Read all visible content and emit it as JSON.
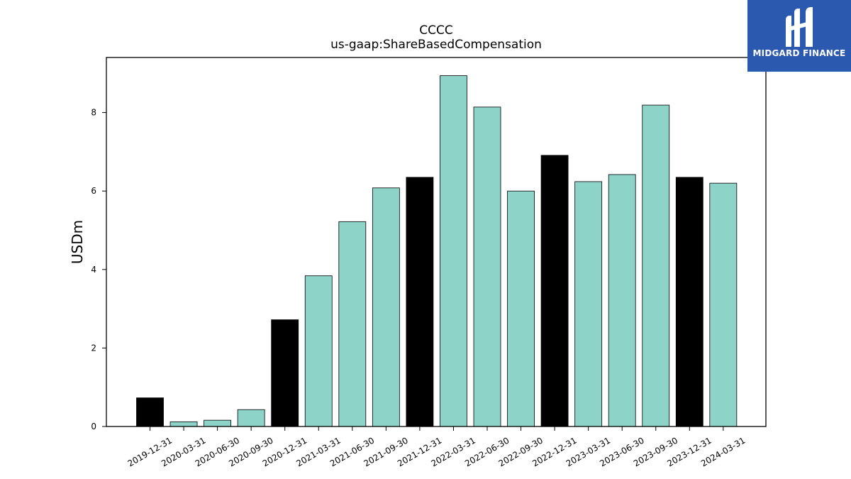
{
  "chart_data": {
    "type": "bar",
    "title": "CCCC",
    "subtitle": "us-gaap:ShareBasedCompensation",
    "xlabel": "",
    "ylabel": "USDm",
    "ylim": [
      0,
      9.4
    ],
    "yticks": [
      0,
      2,
      4,
      6,
      8
    ],
    "grid": false,
    "categories": [
      "2019-12-31",
      "2020-03-31",
      "2020-06-30",
      "2020-09-30",
      "2020-12-31",
      "2021-03-31",
      "2021-06-30",
      "2021-09-30",
      "2021-12-31",
      "2022-03-31",
      "2022-06-30",
      "2022-09-30",
      "2022-12-31",
      "2023-03-31",
      "2023-06-30",
      "2023-09-30",
      "2023-12-31",
      "2024-03-31"
    ],
    "values": [
      0.73,
      0.12,
      0.16,
      0.43,
      2.72,
      3.84,
      5.22,
      6.08,
      6.35,
      8.94,
      8.14,
      6.0,
      6.91,
      6.24,
      6.42,
      8.19,
      6.35,
      6.2
    ],
    "bar_colors": [
      "#000000",
      "#8dd3c7",
      "#8dd3c7",
      "#8dd3c7",
      "#000000",
      "#8dd3c7",
      "#8dd3c7",
      "#8dd3c7",
      "#000000",
      "#8dd3c7",
      "#8dd3c7",
      "#8dd3c7",
      "#000000",
      "#8dd3c7",
      "#8dd3c7",
      "#8dd3c7",
      "#000000",
      "#8dd3c7"
    ]
  },
  "logo": {
    "text": "MIDGARD FINANCE",
    "background": "#2b59b0",
    "icon": "midgard-logo-icon"
  }
}
